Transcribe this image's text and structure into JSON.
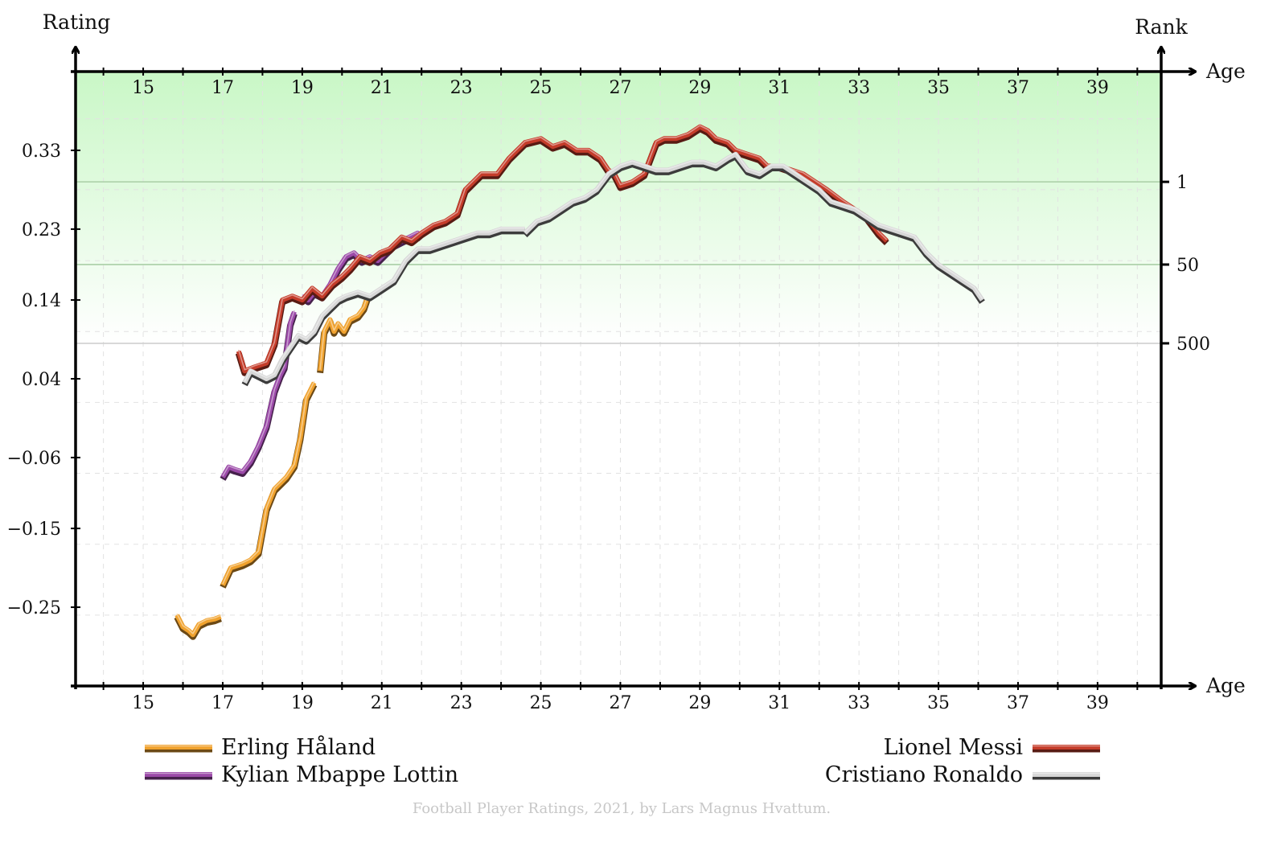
{
  "chart_data": {
    "type": "line",
    "title": "",
    "xlabel": "Age",
    "ylabel": "Rating",
    "y2label": "Rank",
    "xlim": [
      13.3,
      40.6
    ],
    "ylim": [
      -0.35,
      0.43
    ],
    "x_ticks": [
      15,
      17,
      19,
      21,
      23,
      25,
      27,
      29,
      31,
      33,
      35,
      37,
      39
    ],
    "x_tick_labels": [
      "15",
      "17",
      "19",
      "21",
      "23",
      "25",
      "27",
      "29",
      "31",
      "33",
      "35",
      "37",
      "39"
    ],
    "y_ticks": [
      0.33,
      0.23,
      0.14,
      0.04,
      -0.06,
      -0.15,
      -0.25
    ],
    "y_tick_labels": [
      "0.33",
      "0.23",
      "0.14",
      "0.04",
      "−0.06",
      "−0.15",
      "−0.25"
    ],
    "rank_lines": [
      {
        "label": "1",
        "rating": 0.29
      },
      {
        "label": "50",
        "rating": 0.185
      },
      {
        "label": "500",
        "rating": 0.085
      }
    ],
    "grid": true,
    "legend_position": "bottom",
    "credit": "Football Player Ratings, 2021, by Lars Magnus Hvattum.",
    "series": [
      {
        "name": "Erling Håland",
        "color": "#f0a22e",
        "x": [
          15.85,
          16.0,
          16.15,
          16.25,
          16.4,
          16.6,
          16.8,
          16.95,
          null,
          17.0,
          17.2,
          17.5,
          17.7,
          17.9,
          18.1,
          18.3,
          18.6,
          18.8,
          18.95,
          19.1,
          19.3,
          null,
          19.45,
          19.55,
          19.7,
          19.8,
          19.9,
          20.05,
          20.2,
          20.4,
          20.55,
          20.65
        ],
        "y": [
          -0.26,
          -0.275,
          -0.28,
          -0.285,
          -0.272,
          -0.267,
          -0.265,
          -0.262,
          null,
          -0.222,
          -0.2,
          -0.195,
          -0.19,
          -0.18,
          -0.125,
          -0.1,
          -0.085,
          -0.07,
          -0.035,
          0.015,
          0.035,
          null,
          0.05,
          0.1,
          0.115,
          0.1,
          0.11,
          0.1,
          0.115,
          0.12,
          0.13,
          0.145
        ]
      },
      {
        "name": "Kylian Mbappe Lottin",
        "color": "#9b4aa8",
        "x": [
          17.0,
          17.15,
          17.3,
          17.5,
          17.7,
          17.9,
          18.1,
          18.3,
          18.45,
          18.55,
          18.7,
          18.8,
          null,
          19.0,
          19.15,
          19.3,
          19.5,
          19.7,
          19.9,
          20.1,
          20.3,
          20.5,
          20.7,
          20.9,
          21.1,
          21.3,
          21.5,
          21.7,
          21.9,
          22.0
        ],
        "y": [
          -0.085,
          -0.072,
          -0.075,
          -0.078,
          -0.065,
          -0.045,
          -0.02,
          0.025,
          0.045,
          0.055,
          0.11,
          0.125,
          null,
          0.145,
          0.14,
          0.15,
          0.145,
          0.16,
          0.18,
          0.195,
          0.2,
          0.19,
          0.195,
          0.19,
          0.2,
          0.21,
          0.215,
          0.22,
          0.225,
          0.22
        ]
      },
      {
        "name": "Lionel Messi",
        "color": "#c43c2a",
        "x": [
          17.4,
          17.55,
          17.8,
          18.1,
          18.3,
          18.5,
          18.75,
          19.0,
          19.25,
          19.5,
          19.75,
          20.0,
          20.2,
          20.45,
          20.7,
          20.95,
          21.2,
          21.5,
          21.75,
          22.0,
          22.3,
          22.6,
          22.9,
          23.1,
          23.5,
          23.9,
          24.2,
          24.6,
          25.0,
          25.3,
          25.6,
          25.9,
          26.2,
          26.5,
          26.7,
          26.85,
          27.0,
          27.3,
          27.6,
          27.9,
          28.1,
          28.4,
          28.7,
          29.0,
          29.2,
          29.4,
          29.7,
          29.9,
          30.2,
          30.5,
          30.7,
          31.0,
          31.3,
          31.6,
          31.9,
          32.2,
          32.6,
          32.9,
          33.2,
          33.5,
          33.7
        ],
        "y": [
          0.075,
          0.05,
          0.055,
          0.06,
          0.085,
          0.14,
          0.145,
          0.14,
          0.155,
          0.145,
          0.16,
          0.17,
          0.18,
          0.195,
          0.19,
          0.2,
          0.205,
          0.22,
          0.215,
          0.225,
          0.235,
          0.24,
          0.25,
          0.28,
          0.3,
          0.3,
          0.32,
          0.34,
          0.345,
          0.335,
          0.34,
          0.33,
          0.33,
          0.32,
          0.305,
          0.3,
          0.285,
          0.29,
          0.3,
          0.34,
          0.345,
          0.345,
          0.35,
          0.36,
          0.355,
          0.345,
          0.34,
          0.33,
          0.325,
          0.32,
          0.31,
          0.31,
          0.305,
          0.3,
          0.29,
          0.28,
          0.265,
          0.255,
          0.245,
          0.225,
          0.215
        ]
      },
      {
        "name": "Cristiano Ronaldo",
        "color": "#d7d7d7",
        "x": [
          17.55,
          17.7,
          17.9,
          18.1,
          18.3,
          18.5,
          18.7,
          18.9,
          19.1,
          19.3,
          19.5,
          19.7,
          19.9,
          20.1,
          20.4,
          20.7,
          21.0,
          21.3,
          21.6,
          21.9,
          22.2,
          22.5,
          22.8,
          23.1,
          23.4,
          23.7,
          24.0,
          24.3,
          24.6,
          null,
          24.6,
          24.9,
          25.2,
          25.5,
          25.8,
          26.1,
          26.4,
          26.7,
          27.0,
          27.3,
          27.6,
          27.9,
          28.2,
          28.5,
          28.8,
          29.1,
          29.4,
          29.7,
          29.9,
          30.2,
          30.5,
          30.8,
          31.1,
          31.4,
          31.7,
          32.0,
          32.3,
          32.6,
          32.9,
          33.2,
          33.5,
          33.8,
          34.1,
          34.4,
          34.7,
          35.0,
          35.3,
          35.6,
          35.9,
          36.1
        ],
        "y": [
          0.035,
          0.05,
          0.045,
          0.04,
          0.045,
          0.065,
          0.08,
          0.095,
          0.09,
          0.1,
          0.12,
          0.13,
          0.14,
          0.145,
          0.15,
          0.145,
          0.155,
          0.165,
          0.19,
          0.205,
          0.205,
          0.21,
          0.215,
          0.22,
          0.225,
          0.225,
          0.23,
          0.23,
          0.23,
          null,
          0.225,
          0.24,
          0.245,
          0.255,
          0.265,
          0.27,
          0.28,
          0.3,
          0.31,
          0.315,
          0.31,
          0.305,
          0.305,
          0.31,
          0.315,
          0.315,
          0.31,
          0.32,
          0.325,
          0.305,
          0.3,
          0.31,
          0.31,
          0.3,
          0.29,
          0.28,
          0.265,
          0.26,
          0.255,
          0.245,
          0.235,
          0.23,
          0.225,
          0.22,
          0.2,
          0.185,
          0.175,
          0.165,
          0.155,
          0.14
        ]
      }
    ]
  }
}
